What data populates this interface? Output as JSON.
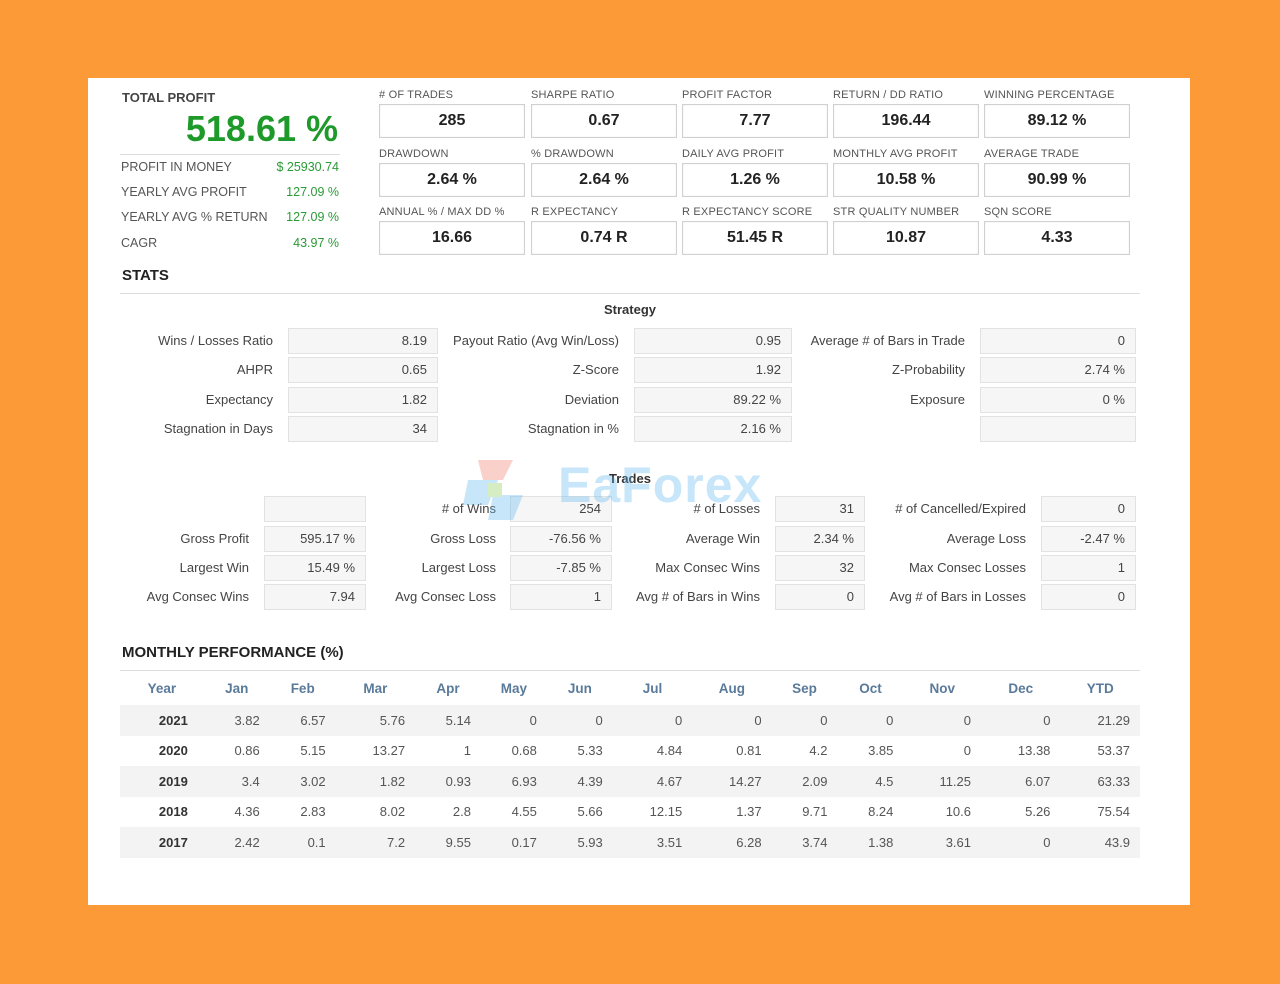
{
  "total_profit": {
    "label": "TOTAL PROFIT",
    "value": "518.61 %",
    "rows": [
      {
        "label": "PROFIT IN MONEY",
        "value": "$ 25930.74"
      },
      {
        "label": "YEARLY AVG PROFIT",
        "value": "127.09 %"
      },
      {
        "label": "YEARLY AVG % RETURN",
        "value": "127.09 %"
      },
      {
        "label": "CAGR",
        "value": "43.97 %"
      }
    ]
  },
  "metrics": [
    {
      "label": "# OF TRADES",
      "value": "285"
    },
    {
      "label": "SHARPE RATIO",
      "value": "0.67"
    },
    {
      "label": "PROFIT FACTOR",
      "value": "7.77"
    },
    {
      "label": "RETURN / DD RATIO",
      "value": "196.44"
    },
    {
      "label": "WINNING PERCENTAGE",
      "value": "89.12 %"
    },
    {
      "label": "DRAWDOWN",
      "value": "2.64 %"
    },
    {
      "label": "% DRAWDOWN",
      "value": "2.64 %"
    },
    {
      "label": "DAILY AVG PROFIT",
      "value": "1.26 %"
    },
    {
      "label": "MONTHLY AVG PROFIT",
      "value": "10.58 %"
    },
    {
      "label": "AVERAGE TRADE",
      "value": "90.99 %"
    },
    {
      "label": "ANNUAL % / MAX DD %",
      "value": "16.66"
    },
    {
      "label": "R EXPECTANCY",
      "value": "0.74 R"
    },
    {
      "label": "R EXPECTANCY SCORE",
      "value": "51.45 R"
    },
    {
      "label": "STR QUALITY NUMBER",
      "value": "10.87"
    },
    {
      "label": "SQN SCORE",
      "value": "4.33"
    }
  ],
  "stats": {
    "title": "STATS",
    "strategy_title": "Strategy",
    "strategy": [
      [
        {
          "label": "Wins / Losses Ratio",
          "value": "8.19"
        },
        {
          "label": "Payout Ratio (Avg Win/Loss)",
          "value": "0.95"
        },
        {
          "label": "Average # of Bars in Trade",
          "value": "0"
        }
      ],
      [
        {
          "label": "AHPR",
          "value": "0.65"
        },
        {
          "label": "Z-Score",
          "value": "1.92"
        },
        {
          "label": "Z-Probability",
          "value": "2.74 %"
        }
      ],
      [
        {
          "label": "Expectancy",
          "value": "1.82"
        },
        {
          "label": "Deviation",
          "value": "89.22 %"
        },
        {
          "label": "Exposure",
          "value": "0 %"
        }
      ],
      [
        {
          "label": "Stagnation in Days",
          "value": "34"
        },
        {
          "label": "Stagnation in %",
          "value": "2.16 %"
        },
        {
          "label": "",
          "value": ""
        }
      ]
    ],
    "trades_title": "Trades",
    "trades": [
      [
        {
          "label": "",
          "value": ""
        },
        {
          "label": "# of Wins",
          "value": "254"
        },
        {
          "label": "# of Losses",
          "value": "31"
        },
        {
          "label": "# of Cancelled/Expired",
          "value": "0"
        }
      ],
      [
        {
          "label": "Gross Profit",
          "value": "595.17 %"
        },
        {
          "label": "Gross Loss",
          "value": "-76.56 %"
        },
        {
          "label": "Average Win",
          "value": "2.34 %"
        },
        {
          "label": "Average Loss",
          "value": "-2.47 %"
        }
      ],
      [
        {
          "label": "Largest Win",
          "value": "15.49 %"
        },
        {
          "label": "Largest Loss",
          "value": "-7.85 %"
        },
        {
          "label": "Max Consec Wins",
          "value": "32"
        },
        {
          "label": "Max Consec Losses",
          "value": "1"
        }
      ],
      [
        {
          "label": "Avg Consec Wins",
          "value": "7.94"
        },
        {
          "label": "Avg Consec Loss",
          "value": "1"
        },
        {
          "label": "Avg # of Bars in Wins",
          "value": "0"
        },
        {
          "label": "Avg # of Bars in Losses",
          "value": "0"
        }
      ]
    ]
  },
  "monthly": {
    "title": "MONTHLY PERFORMANCE (%)",
    "headers": [
      "Year",
      "Jan",
      "Feb",
      "Mar",
      "Apr",
      "May",
      "Jun",
      "Jul",
      "Aug",
      "Sep",
      "Oct",
      "Nov",
      "Dec",
      "YTD"
    ],
    "rows": [
      [
        "2021",
        "3.82",
        "6.57",
        "5.76",
        "5.14",
        "0",
        "0",
        "0",
        "0",
        "0",
        "0",
        "0",
        "0",
        "21.29"
      ],
      [
        "2020",
        "0.86",
        "5.15",
        "13.27",
        "1",
        "0.68",
        "5.33",
        "4.84",
        "0.81",
        "4.2",
        "3.85",
        "0",
        "13.38",
        "53.37"
      ],
      [
        "2019",
        "3.4",
        "3.02",
        "1.82",
        "0.93",
        "6.93",
        "4.39",
        "4.67",
        "14.27",
        "2.09",
        "4.5",
        "11.25",
        "6.07",
        "63.33"
      ],
      [
        "2018",
        "4.36",
        "2.83",
        "8.02",
        "2.8",
        "4.55",
        "5.66",
        "12.15",
        "1.37",
        "9.71",
        "8.24",
        "10.6",
        "5.26",
        "75.54"
      ],
      [
        "2017",
        "2.42",
        "0.1",
        "7.2",
        "9.55",
        "0.17",
        "5.93",
        "3.51",
        "6.28",
        "3.74",
        "1.38",
        "3.61",
        "0",
        "43.9"
      ]
    ]
  },
  "watermark": {
    "text": "EaForex",
    "logo_icon": "eaforex-logo-icon"
  },
  "colors": {
    "background": "#fb9a37",
    "profit_green": "#1e9a2a",
    "header_blue": "#5a7a9a"
  }
}
